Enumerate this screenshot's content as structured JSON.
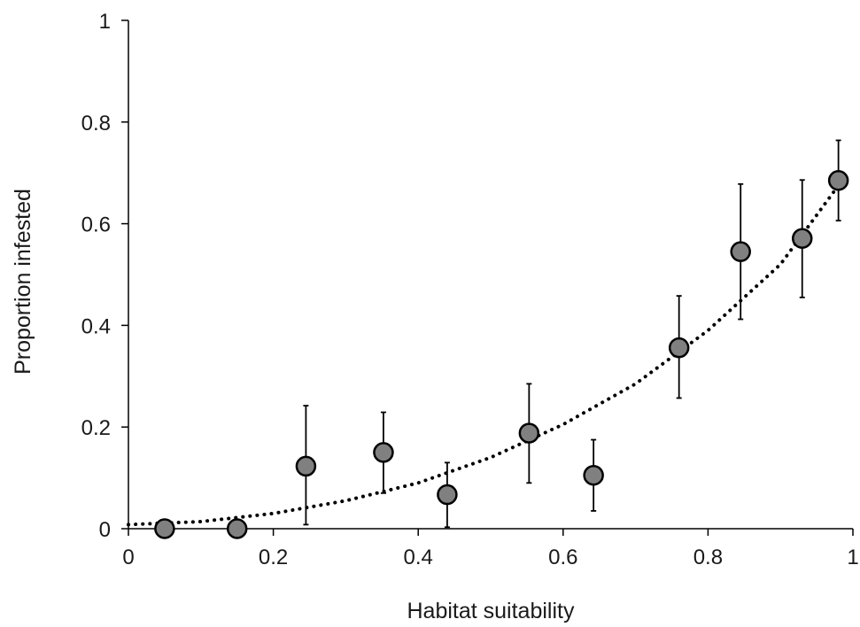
{
  "chart_data": {
    "type": "scatter",
    "title": "",
    "xlabel": "Habitat suitability",
    "ylabel": "Proportion infested",
    "xlim": [
      0,
      1
    ],
    "ylim": [
      0,
      1
    ],
    "x_ticks": [
      "0",
      "0.2",
      "0.4",
      "0.6",
      "0.8",
      "1"
    ],
    "y_ticks": [
      "0",
      "0.2",
      "0.4",
      "0.6",
      "0.8",
      "1"
    ],
    "grid": false,
    "legend": "none",
    "marker_fill": "#808080",
    "series": [
      {
        "x": [
          0.05,
          0.15,
          0.245,
          0.352,
          0.44,
          0.553,
          0.642,
          0.76,
          0.845,
          0.93,
          0.98
        ],
        "y": [
          0.0,
          0.0,
          0.123,
          0.15,
          0.067,
          0.188,
          0.105,
          0.356,
          0.545,
          0.571,
          0.685
        ],
        "err_low": [
          0.0,
          0.0,
          0.008,
          0.07,
          0.003,
          0.09,
          0.035,
          0.257,
          0.412,
          0.455,
          0.606
        ],
        "err_high": [
          0.0,
          0.0,
          0.242,
          0.229,
          0.13,
          0.285,
          0.175,
          0.458,
          0.678,
          0.686,
          0.764
        ]
      }
    ],
    "trend": {
      "style": "dotted",
      "x": [
        0.0,
        0.1,
        0.2,
        0.3,
        0.4,
        0.5,
        0.6,
        0.7,
        0.8,
        0.9,
        0.98
      ],
      "y": [
        0.008,
        0.014,
        0.03,
        0.055,
        0.09,
        0.14,
        0.205,
        0.285,
        0.39,
        0.52,
        0.675
      ]
    }
  }
}
